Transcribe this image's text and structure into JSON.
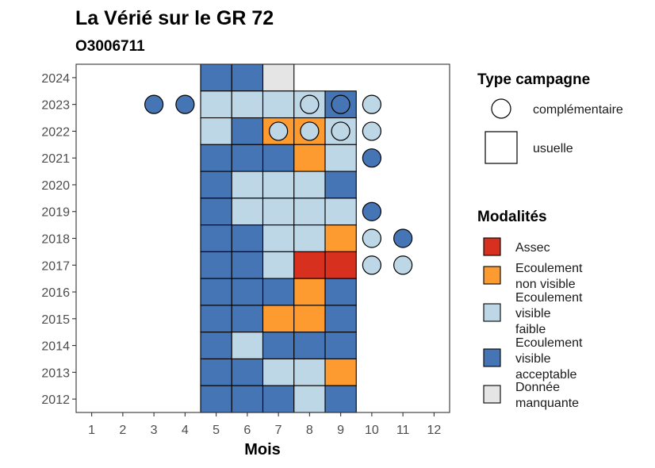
{
  "chart_data": {
    "type": "heatmap",
    "title": "La Vérié sur le GR 72",
    "subtitle": "O3006711",
    "xlabel": "Mois",
    "ylabel": "",
    "x_ticks": [
      1,
      2,
      3,
      4,
      5,
      6,
      7,
      8,
      9,
      10,
      11,
      12
    ],
    "y_ticks": [
      2012,
      2013,
      2014,
      2015,
      2016,
      2017,
      2018,
      2019,
      2020,
      2021,
      2022,
      2023,
      2024
    ],
    "xlim": [
      0.5,
      12.5
    ],
    "ylim": [
      2011.5,
      2024.5
    ],
    "colors": {
      "Assec": "#d7301f",
      "Ecoulement non visible": "#fd9a30",
      "Ecoulement visible faible": "#bdd7e7",
      "Ecoulement visible acceptable": "#4575b4",
      "Donnée manquante": "#e5e5e5"
    },
    "legend_type": {
      "title": "Type campagne",
      "items": [
        {
          "key": "complementaire",
          "shape": "circle",
          "label": "complémentaire"
        },
        {
          "key": "usuelle",
          "shape": "square",
          "label": "usuelle"
        }
      ]
    },
    "legend_modalites": {
      "title": "Modalités",
      "items": [
        {
          "key": "Assec",
          "lines": [
            "Assec"
          ]
        },
        {
          "key": "Ecoulement non visible",
          "lines": [
            "Ecoulement",
            "non visible"
          ]
        },
        {
          "key": "Ecoulement visible faible",
          "lines": [
            "Ecoulement",
            "visible",
            "faible"
          ]
        },
        {
          "key": "Ecoulement visible acceptable",
          "lines": [
            "Ecoulement",
            "visible",
            "acceptable"
          ]
        },
        {
          "key": "Donnée manquante",
          "lines": [
            "Donnée",
            "manquante"
          ]
        }
      ]
    },
    "usuelle": [
      {
        "year": 2024,
        "month": 5,
        "modalite": "Ecoulement visible acceptable"
      },
      {
        "year": 2024,
        "month": 6,
        "modalite": "Ecoulement visible acceptable"
      },
      {
        "year": 2024,
        "month": 7,
        "modalite": "Donnée manquante"
      },
      {
        "year": 2023,
        "month": 5,
        "modalite": "Ecoulement visible faible"
      },
      {
        "year": 2023,
        "month": 6,
        "modalite": "Ecoulement visible faible"
      },
      {
        "year": 2023,
        "month": 7,
        "modalite": "Ecoulement visible faible"
      },
      {
        "year": 2023,
        "month": 8,
        "modalite": "Ecoulement visible faible"
      },
      {
        "year": 2023,
        "month": 9,
        "modalite": "Ecoulement visible acceptable"
      },
      {
        "year": 2022,
        "month": 5,
        "modalite": "Ecoulement visible faible"
      },
      {
        "year": 2022,
        "month": 6,
        "modalite": "Ecoulement visible acceptable"
      },
      {
        "year": 2022,
        "month": 7,
        "modalite": "Ecoulement non visible"
      },
      {
        "year": 2022,
        "month": 8,
        "modalite": "Ecoulement non visible"
      },
      {
        "year": 2022,
        "month": 9,
        "modalite": "Ecoulement visible faible"
      },
      {
        "year": 2021,
        "month": 5,
        "modalite": "Ecoulement visible acceptable"
      },
      {
        "year": 2021,
        "month": 6,
        "modalite": "Ecoulement visible acceptable"
      },
      {
        "year": 2021,
        "month": 7,
        "modalite": "Ecoulement visible acceptable"
      },
      {
        "year": 2021,
        "month": 8,
        "modalite": "Ecoulement non visible"
      },
      {
        "year": 2021,
        "month": 9,
        "modalite": "Ecoulement visible faible"
      },
      {
        "year": 2020,
        "month": 5,
        "modalite": "Ecoulement visible acceptable"
      },
      {
        "year": 2020,
        "month": 6,
        "modalite": "Ecoulement visible faible"
      },
      {
        "year": 2020,
        "month": 7,
        "modalite": "Ecoulement visible faible"
      },
      {
        "year": 2020,
        "month": 8,
        "modalite": "Ecoulement visible faible"
      },
      {
        "year": 2020,
        "month": 9,
        "modalite": "Ecoulement visible acceptable"
      },
      {
        "year": 2019,
        "month": 5,
        "modalite": "Ecoulement visible acceptable"
      },
      {
        "year": 2019,
        "month": 6,
        "modalite": "Ecoulement visible faible"
      },
      {
        "year": 2019,
        "month": 7,
        "modalite": "Ecoulement visible faible"
      },
      {
        "year": 2019,
        "month": 8,
        "modalite": "Ecoulement visible faible"
      },
      {
        "year": 2019,
        "month": 9,
        "modalite": "Ecoulement visible faible"
      },
      {
        "year": 2018,
        "month": 5,
        "modalite": "Ecoulement visible acceptable"
      },
      {
        "year": 2018,
        "month": 6,
        "modalite": "Ecoulement visible acceptable"
      },
      {
        "year": 2018,
        "month": 7,
        "modalite": "Ecoulement visible faible"
      },
      {
        "year": 2018,
        "month": 8,
        "modalite": "Ecoulement visible faible"
      },
      {
        "year": 2018,
        "month": 9,
        "modalite": "Ecoulement non visible"
      },
      {
        "year": 2017,
        "month": 5,
        "modalite": "Ecoulement visible acceptable"
      },
      {
        "year": 2017,
        "month": 6,
        "modalite": "Ecoulement visible acceptable"
      },
      {
        "year": 2017,
        "month": 7,
        "modalite": "Ecoulement visible faible"
      },
      {
        "year": 2017,
        "month": 8,
        "modalite": "Assec"
      },
      {
        "year": 2017,
        "month": 9,
        "modalite": "Assec"
      },
      {
        "year": 2016,
        "month": 5,
        "modalite": "Ecoulement visible acceptable"
      },
      {
        "year": 2016,
        "month": 6,
        "modalite": "Ecoulement visible acceptable"
      },
      {
        "year": 2016,
        "month": 7,
        "modalite": "Ecoulement visible acceptable"
      },
      {
        "year": 2016,
        "month": 8,
        "modalite": "Ecoulement non visible"
      },
      {
        "year": 2016,
        "month": 9,
        "modalite": "Ecoulement visible acceptable"
      },
      {
        "year": 2015,
        "month": 5,
        "modalite": "Ecoulement visible acceptable"
      },
      {
        "year": 2015,
        "month": 6,
        "modalite": "Ecoulement visible acceptable"
      },
      {
        "year": 2015,
        "month": 7,
        "modalite": "Ecoulement non visible"
      },
      {
        "year": 2015,
        "month": 8,
        "modalite": "Ecoulement non visible"
      },
      {
        "year": 2015,
        "month": 9,
        "modalite": "Ecoulement visible acceptable"
      },
      {
        "year": 2014,
        "month": 5,
        "modalite": "Ecoulement visible acceptable"
      },
      {
        "year": 2014,
        "month": 6,
        "modalite": "Ecoulement visible faible"
      },
      {
        "year": 2014,
        "month": 7,
        "modalite": "Ecoulement visible acceptable"
      },
      {
        "year": 2014,
        "month": 8,
        "modalite": "Ecoulement visible acceptable"
      },
      {
        "year": 2014,
        "month": 9,
        "modalite": "Ecoulement visible acceptable"
      },
      {
        "year": 2013,
        "month": 5,
        "modalite": "Ecoulement visible acceptable"
      },
      {
        "year": 2013,
        "month": 6,
        "modalite": "Ecoulement visible acceptable"
      },
      {
        "year": 2013,
        "month": 7,
        "modalite": "Ecoulement visible faible"
      },
      {
        "year": 2013,
        "month": 8,
        "modalite": "Ecoulement visible faible"
      },
      {
        "year": 2013,
        "month": 9,
        "modalite": "Ecoulement non visible"
      },
      {
        "year": 2012,
        "month": 5,
        "modalite": "Ecoulement visible acceptable"
      },
      {
        "year": 2012,
        "month": 6,
        "modalite": "Ecoulement visible acceptable"
      },
      {
        "year": 2012,
        "month": 7,
        "modalite": "Ecoulement visible acceptable"
      },
      {
        "year": 2012,
        "month": 8,
        "modalite": "Ecoulement visible faible"
      },
      {
        "year": 2012,
        "month": 9,
        "modalite": "Ecoulement visible acceptable"
      }
    ],
    "complementaire": [
      {
        "year": 2023,
        "month": 3,
        "modalite": "Ecoulement visible acceptable"
      },
      {
        "year": 2023,
        "month": 4,
        "modalite": "Ecoulement visible acceptable"
      },
      {
        "year": 2023,
        "month": 8,
        "modalite": "Ecoulement visible faible"
      },
      {
        "year": 2023,
        "month": 9,
        "modalite": "Ecoulement visible acceptable"
      },
      {
        "year": 2023,
        "month": 10,
        "modalite": "Ecoulement visible faible"
      },
      {
        "year": 2022,
        "month": 7,
        "modalite": "Ecoulement visible faible"
      },
      {
        "year": 2022,
        "month": 8,
        "modalite": "Ecoulement visible faible"
      },
      {
        "year": 2022,
        "month": 9,
        "modalite": "Ecoulement visible faible"
      },
      {
        "year": 2022,
        "month": 10,
        "modalite": "Ecoulement visible faible"
      },
      {
        "year": 2021,
        "month": 10,
        "modalite": "Ecoulement visible acceptable"
      },
      {
        "year": 2019,
        "month": 10,
        "modalite": "Ecoulement visible acceptable"
      },
      {
        "year": 2018,
        "month": 10,
        "modalite": "Ecoulement visible faible"
      },
      {
        "year": 2018,
        "month": 11,
        "modalite": "Ecoulement visible acceptable"
      },
      {
        "year": 2017,
        "month": 10,
        "modalite": "Ecoulement visible faible"
      },
      {
        "year": 2017,
        "month": 11,
        "modalite": "Ecoulement visible faible"
      }
    ]
  }
}
